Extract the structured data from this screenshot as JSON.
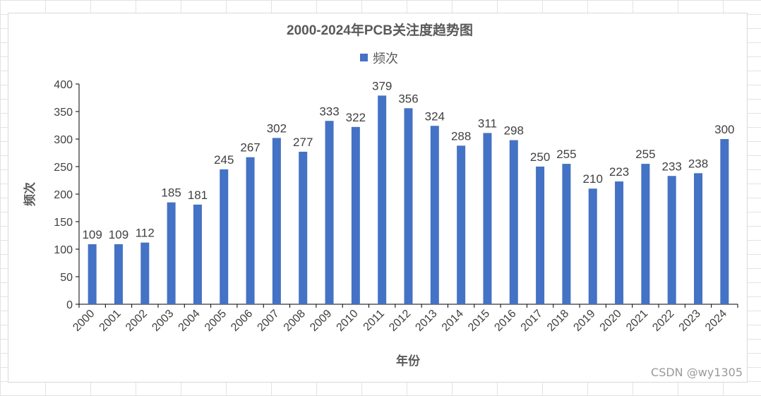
{
  "chart_data": {
    "type": "bar",
    "title": "2000-2024年PCB关注度趋势图",
    "xlabel": "年份",
    "ylabel": "频次",
    "ylim": [
      0,
      400
    ],
    "yticks": [
      0,
      50,
      100,
      150,
      200,
      250,
      300,
      350,
      400
    ],
    "legend": "top-center",
    "grid": false,
    "bar_color": "#4472C4",
    "categories": [
      "2000",
      "2001",
      "2002",
      "2003",
      "2004",
      "2005",
      "2006",
      "2007",
      "2008",
      "2009",
      "2010",
      "2011",
      "2012",
      "2013",
      "2014",
      "2015",
      "2016",
      "2017",
      "2018",
      "2019",
      "2020",
      "2021",
      "2022",
      "2023",
      "2024"
    ],
    "series": [
      {
        "name": "频次",
        "values": [
          109,
          109,
          112,
          185,
          181,
          245,
          267,
          302,
          277,
          333,
          322,
          379,
          356,
          324,
          288,
          311,
          298,
          250,
          255,
          210,
          223,
          255,
          233,
          238,
          300
        ]
      }
    ]
  },
  "watermark": "CSDN @wy1305"
}
